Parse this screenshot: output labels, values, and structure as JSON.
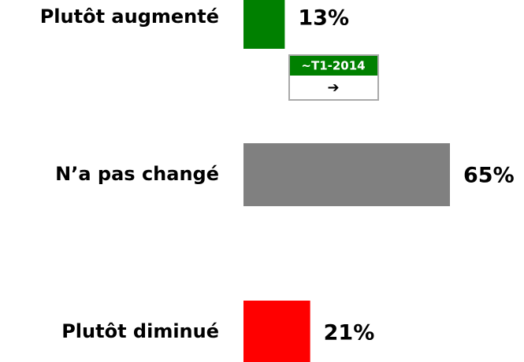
{
  "chart_data": {
    "type": "hbar",
    "categories": [
      "Plutôt augmenté",
      "N’a pas changé",
      "Plutôt diminué"
    ],
    "values": [
      13,
      65,
      21
    ],
    "value_labels": [
      "13%",
      "65%",
      "21%"
    ],
    "colors": [
      "#008000",
      "#808080",
      "#ff0000"
    ],
    "annotation": {
      "label": "~T1-2014",
      "symbol": "➔"
    }
  }
}
